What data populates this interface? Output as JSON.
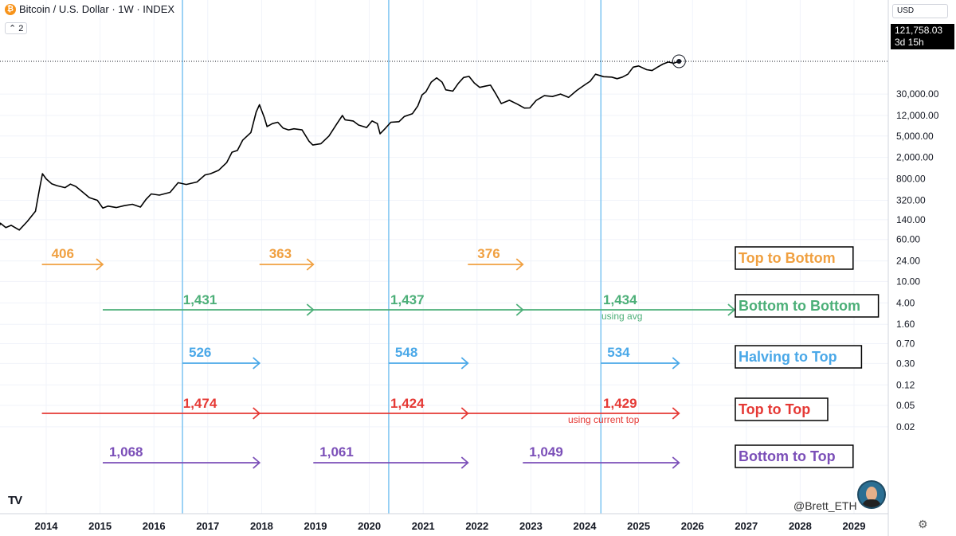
{
  "header": {
    "title": "Bitcoin / U.S. Dollar · 1W · INDEX",
    "indicator_count": "2",
    "currency": "USD",
    "icon": "bitcoin-icon"
  },
  "last_price": {
    "value": "121,758.03",
    "countdown": "3d 15h"
  },
  "watermark": "@Brett_ETH",
  "logo": "TV",
  "colors": {
    "orange": "#f0a040",
    "green": "#4caf78",
    "blue": "#4aa8e8",
    "red": "#e53935",
    "purple": "#7b4fb8",
    "price": "#000000",
    "halving": "#7cc4f2"
  },
  "chart_data": {
    "type": "line",
    "scale": "log",
    "grid": true,
    "x_years": [
      "2014",
      "2015",
      "2016",
      "2017",
      "2018",
      "2019",
      "2020",
      "2021",
      "2022",
      "2023",
      "2024",
      "2025",
      "2026",
      "2027",
      "2028",
      "2029"
    ],
    "y_ticks": [
      "30,000.00",
      "12,000.00",
      "5,000.00",
      "2,000.00",
      "800.00",
      "320.00",
      "140.00",
      "60.00",
      "24.00",
      "10.00",
      "4.00",
      "1.60",
      "0.70",
      "0.30",
      "0.12",
      "0.05",
      "0.02"
    ],
    "halvings": [
      2016.53,
      2020.36,
      2024.3
    ],
    "series": [
      {
        "values": [
          [
            2013.0,
            13
          ],
          [
            2013.1,
            90
          ],
          [
            2013.15,
            120
          ],
          [
            2013.25,
            100
          ],
          [
            2013.35,
            110
          ],
          [
            2013.5,
            90
          ],
          [
            2013.65,
            130
          ],
          [
            2013.8,
            200
          ],
          [
            2013.88,
            550
          ],
          [
            2013.93,
            1000
          ],
          [
            2014.0,
            800
          ],
          [
            2014.1,
            650
          ],
          [
            2014.2,
            600
          ],
          [
            2014.35,
            550
          ],
          [
            2014.45,
            640
          ],
          [
            2014.55,
            580
          ],
          [
            2014.65,
            480
          ],
          [
            2014.8,
            360
          ],
          [
            2014.95,
            320
          ],
          [
            2015.05,
            230
          ],
          [
            2015.15,
            250
          ],
          [
            2015.3,
            235
          ],
          [
            2015.45,
            255
          ],
          [
            2015.6,
            270
          ],
          [
            2015.75,
            240
          ],
          [
            2015.85,
            330
          ],
          [
            2015.95,
            420
          ],
          [
            2016.1,
            400
          ],
          [
            2016.3,
            450
          ],
          [
            2016.45,
            680
          ],
          [
            2016.6,
            630
          ],
          [
            2016.8,
            700
          ],
          [
            2016.95,
            950
          ],
          [
            2017.05,
            1000
          ],
          [
            2017.2,
            1150
          ],
          [
            2017.35,
            1600
          ],
          [
            2017.45,
            2500
          ],
          [
            2017.55,
            2700
          ],
          [
            2017.65,
            4200
          ],
          [
            2017.8,
            5800
          ],
          [
            2017.9,
            14000
          ],
          [
            2017.96,
            19000
          ],
          [
            2018.05,
            11000
          ],
          [
            2018.1,
            7500
          ],
          [
            2018.2,
            8500
          ],
          [
            2018.3,
            9000
          ],
          [
            2018.4,
            7000
          ],
          [
            2018.5,
            6500
          ],
          [
            2018.6,
            6800
          ],
          [
            2018.75,
            6500
          ],
          [
            2018.88,
            4000
          ],
          [
            2018.95,
            3400
          ],
          [
            2019.1,
            3600
          ],
          [
            2019.25,
            5000
          ],
          [
            2019.4,
            8500
          ],
          [
            2019.5,
            12000
          ],
          [
            2019.55,
            10000
          ],
          [
            2019.7,
            9500
          ],
          [
            2019.8,
            8000
          ],
          [
            2019.95,
            7200
          ],
          [
            2020.05,
            9500
          ],
          [
            2020.15,
            8500
          ],
          [
            2020.2,
            5500
          ],
          [
            2020.3,
            7000
          ],
          [
            2020.4,
            9000
          ],
          [
            2020.55,
            9200
          ],
          [
            2020.65,
            11500
          ],
          [
            2020.8,
            13000
          ],
          [
            2020.9,
            18000
          ],
          [
            2020.98,
            29000
          ],
          [
            2021.05,
            33000
          ],
          [
            2021.15,
            50000
          ],
          [
            2021.25,
            60000
          ],
          [
            2021.35,
            50000
          ],
          [
            2021.42,
            36000
          ],
          [
            2021.55,
            34000
          ],
          [
            2021.65,
            47000
          ],
          [
            2021.75,
            61000
          ],
          [
            2021.85,
            64000
          ],
          [
            2021.95,
            48000
          ],
          [
            2022.05,
            40000
          ],
          [
            2022.15,
            42000
          ],
          [
            2022.25,
            44000
          ],
          [
            2022.35,
            30000
          ],
          [
            2022.45,
            20000
          ],
          [
            2022.6,
            23000
          ],
          [
            2022.75,
            19500
          ],
          [
            2022.88,
            16500
          ],
          [
            2022.98,
            16600
          ],
          [
            2023.1,
            23000
          ],
          [
            2023.25,
            28000
          ],
          [
            2023.4,
            27000
          ],
          [
            2023.55,
            30000
          ],
          [
            2023.7,
            26000
          ],
          [
            2023.85,
            35000
          ],
          [
            2023.98,
            43000
          ],
          [
            2024.1,
            52000
          ],
          [
            2024.2,
            70000
          ],
          [
            2024.35,
            63000
          ],
          [
            2024.5,
            62000
          ],
          [
            2024.6,
            58000
          ],
          [
            2024.7,
            62000
          ],
          [
            2024.8,
            70000
          ],
          [
            2024.9,
            95000
          ],
          [
            2025.0,
            100000
          ],
          [
            2025.15,
            85000
          ],
          [
            2025.25,
            82000
          ],
          [
            2025.35,
            95000
          ],
          [
            2025.45,
            108000
          ],
          [
            2025.55,
            118000
          ],
          [
            2025.65,
            112000
          ],
          [
            2025.75,
            121758
          ]
        ]
      }
    ],
    "annotations": {
      "top_to_bottom": {
        "label": "Top to Bottom",
        "color": "orange",
        "items": [
          {
            "value": "406",
            "start": 2013.92,
            "end": 2015.05
          },
          {
            "value": "363",
            "start": 2017.96,
            "end": 2018.96
          },
          {
            "value": "376",
            "start": 2021.83,
            "end": 2022.85
          }
        ]
      },
      "bottom_to_bottom": {
        "label": "Bottom to Bottom",
        "color": "green",
        "segments": [
          [
            2015.05,
            2018.96
          ],
          [
            2018.96,
            2022.85
          ],
          [
            2022.85,
            2026.78
          ]
        ],
        "items": [
          {
            "value": "1,431",
            "at": 2016.6
          },
          {
            "value": "1,437",
            "at": 2020.45
          },
          {
            "value": "1,434",
            "at": 2024.4
          }
        ],
        "note": "using avg"
      },
      "halving_to_top": {
        "label": "Halving to Top",
        "color": "blue",
        "items": [
          {
            "value": "526",
            "start": 2016.53,
            "end": 2017.96
          },
          {
            "value": "548",
            "start": 2020.36,
            "end": 2021.83
          },
          {
            "value": "534",
            "start": 2024.3,
            "end": 2025.75
          }
        ]
      },
      "top_to_top": {
        "label": "Top to Top",
        "color": "red",
        "segments": [
          [
            2013.92,
            2017.96
          ],
          [
            2017.96,
            2021.83
          ],
          [
            2021.83,
            2025.75
          ]
        ],
        "items": [
          {
            "value": "1,474",
            "at": 2016.6
          },
          {
            "value": "1,424",
            "at": 2020.45
          },
          {
            "value": "1,429",
            "at": 2024.4
          }
        ],
        "note": "using current top"
      },
      "bottom_to_top": {
        "label": "Bottom to Top",
        "color": "purple",
        "items": [
          {
            "value": "1,068",
            "start": 2015.05,
            "end": 2017.96
          },
          {
            "value": "1,061",
            "start": 2018.96,
            "end": 2021.83
          },
          {
            "value": "1,049",
            "start": 2022.85,
            "end": 2025.75
          }
        ]
      }
    }
  }
}
